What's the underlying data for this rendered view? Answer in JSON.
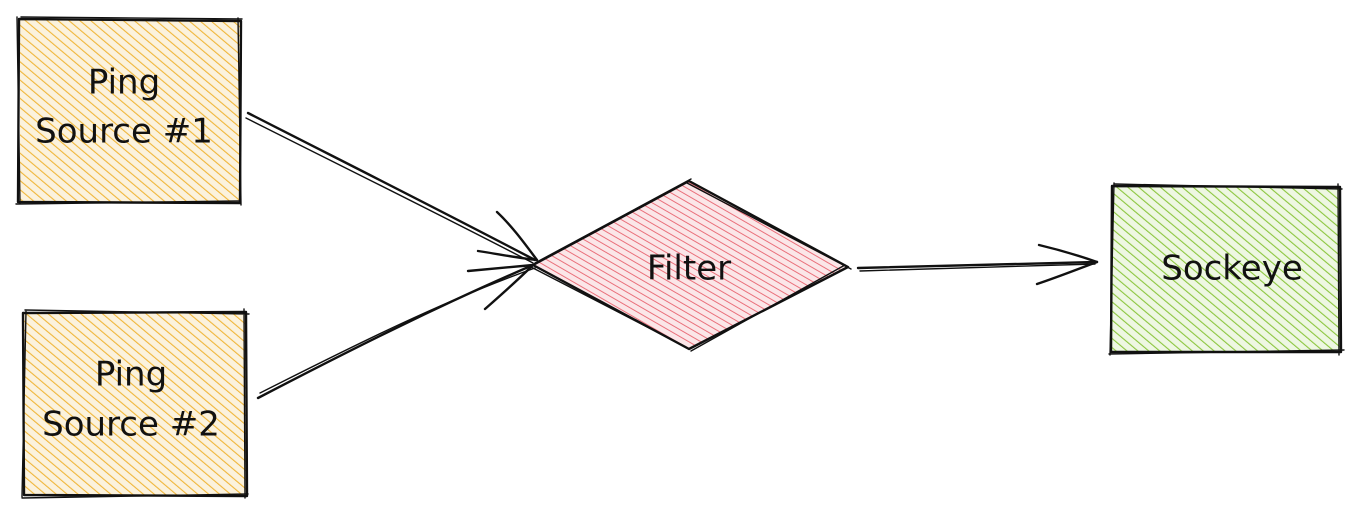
{
  "nodes": {
    "source1": {
      "line1": "Ping",
      "line2": "Source #1",
      "fill_color": "#f0b63a"
    },
    "source2": {
      "line1": "Ping",
      "line2": "Source #2",
      "fill_color": "#f0b63a"
    },
    "filter": {
      "label": "Filter",
      "fill_color": "#e8636f"
    },
    "sockeye": {
      "label": "Sockeye",
      "fill_color": "#8cc63f"
    }
  },
  "edges": [
    {
      "from": "source1",
      "to": "filter"
    },
    {
      "from": "source2",
      "to": "filter"
    },
    {
      "from": "filter",
      "to": "sockeye"
    }
  ],
  "stroke_color": "#111111"
}
